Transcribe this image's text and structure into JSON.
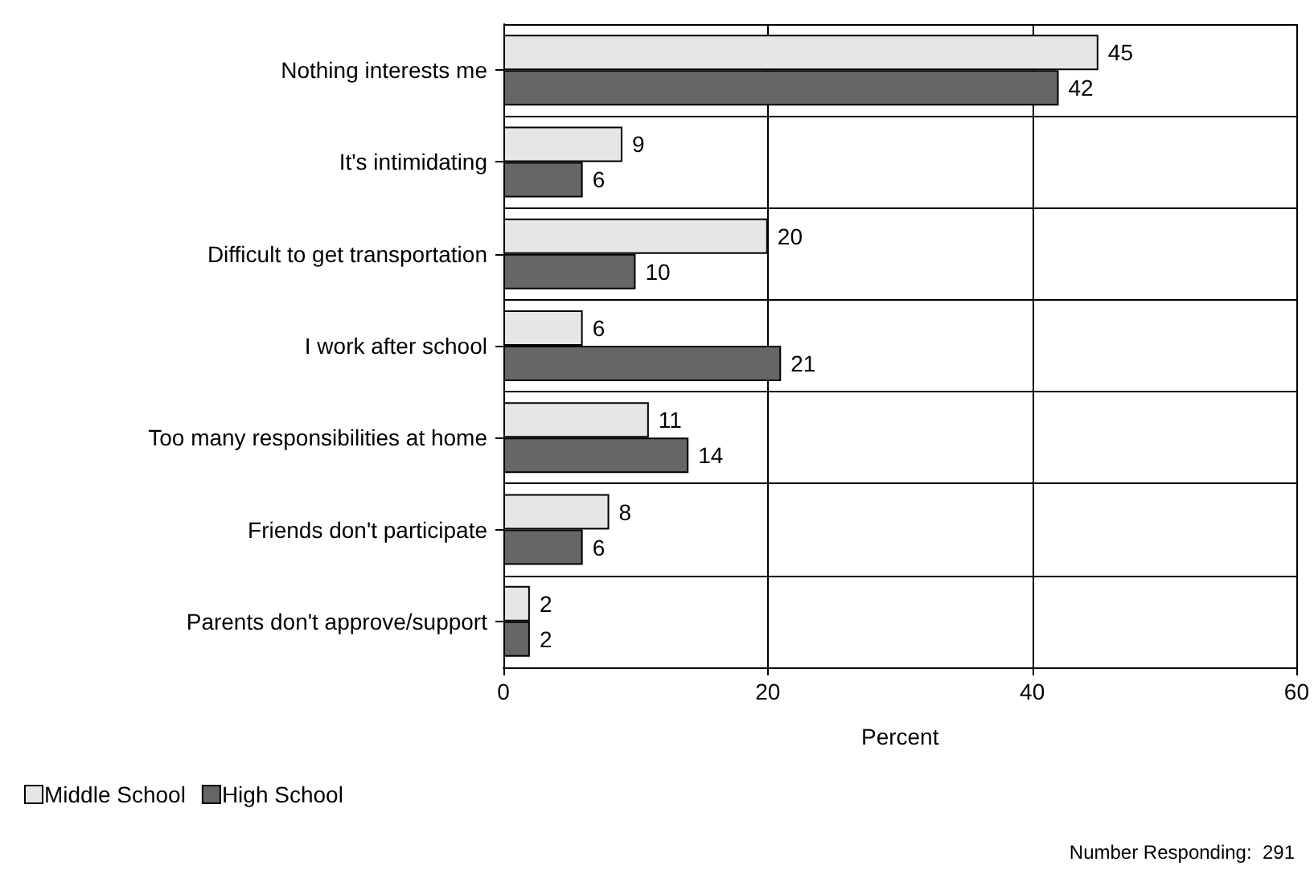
{
  "chart_data": {
    "type": "bar",
    "orientation": "horizontal",
    "xlabel": "Percent",
    "categories": [
      "Nothing interests me",
      "It's intimidating",
      "Difficult to get transportation",
      "I work after school",
      "Too many responsibilities at home",
      "Friends don't participate",
      "Parents don't approve/support"
    ],
    "series": [
      {
        "name": "Middle School",
        "color": "#e6e6e6",
        "values": [
          45,
          9,
          20,
          6,
          11,
          8,
          2
        ]
      },
      {
        "name": "High School",
        "color": "#666666",
        "values": [
          42,
          6,
          10,
          21,
          14,
          6,
          2
        ]
      }
    ],
    "xlim": [
      0,
      60
    ],
    "xticks": [
      0,
      20,
      40,
      60
    ],
    "grid": true,
    "legend": "bottom left",
    "data_labels": true,
    "annotations": [
      "Number Responding:  291"
    ]
  }
}
